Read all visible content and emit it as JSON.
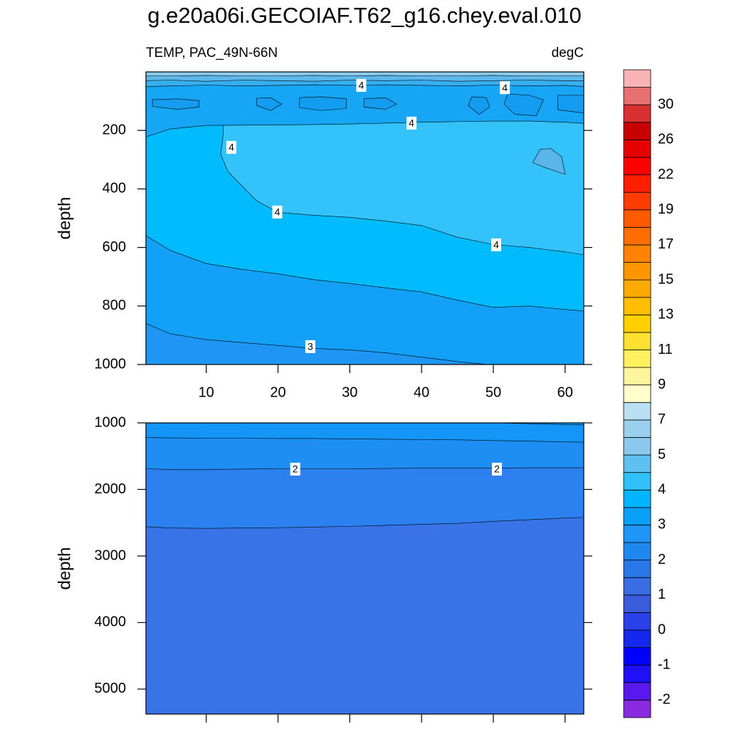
{
  "chart_data": [
    {
      "type": "contour",
      "title": "g.e20a06i.GECOIAF.T62_g16.chey.eval.010",
      "subtitle_left": "TEMP, PAC_49N-66N",
      "subtitle_right": "degC",
      "ylabel": "depth",
      "xlim": [
        1.6,
        62.6
      ],
      "ylim": [
        0,
        1000
      ],
      "xticks": [
        10,
        20,
        30,
        40,
        50,
        60
      ],
      "yticks": [
        200,
        400,
        600,
        800,
        1000
      ],
      "show_xtick_labels": true,
      "regions": [
        {
          "color": "#1e96f4",
          "x": [
            1.6,
            62.6,
            62.6,
            1.6
          ],
          "depth": [
            0,
            0,
            1000,
            1000
          ]
        },
        {
          "color": "#13a1f8",
          "x": [
            1.6,
            1.6,
            5,
            10,
            15,
            20,
            25,
            30,
            35,
            40,
            45,
            50,
            55,
            60,
            62.6,
            62.6
          ],
          "depth": [
            0,
            860,
            895,
            915,
            925,
            935,
            945,
            950,
            960,
            975,
            990,
            1002,
            1010,
            1010,
            1010,
            0
          ]
        },
        {
          "color": "#00bcff",
          "x": [
            1.6,
            1.6,
            5,
            10,
            15,
            20,
            25,
            30,
            35,
            40,
            45,
            50,
            55,
            60,
            62.6,
            62.6
          ],
          "depth": [
            0,
            560,
            610,
            655,
            675,
            690,
            710,
            723,
            738,
            752,
            780,
            805,
            800,
            812,
            817,
            0
          ]
        },
        {
          "color": "#33c2fa",
          "x": [
            12.5,
            62.6,
            62.6,
            60,
            55,
            50,
            45,
            40,
            35,
            30,
            25,
            20,
            17,
            15,
            13,
            12,
            12.3
          ],
          "depth": [
            150,
            150,
            625,
            615,
            600,
            590,
            565,
            525,
            510,
            497,
            490,
            480,
            440,
            390,
            340,
            280,
            230
          ]
        },
        {
          "color": "#5ab6ea",
          "x": [
            56.5,
            58,
            59.5,
            60,
            57,
            55.5
          ],
          "depth": [
            265,
            262,
            290,
            350,
            325,
            310
          ]
        },
        {
          "color": "#17a6f5",
          "x": [
            1.6,
            1.6,
            5,
            10,
            15,
            20,
            25,
            30,
            35,
            40,
            45,
            50,
            55,
            60,
            62.6,
            62.6
          ],
          "depth": [
            0,
            222,
            195,
            183,
            182,
            181,
            180,
            178,
            175,
            172,
            170,
            168,
            168,
            172,
            176,
            0
          ]
        },
        {
          "color": "#139cf0",
          "x": [
            2.5,
            6,
            9,
            9,
            6,
            2.5
          ],
          "depth": [
            95,
            92,
            98,
            120,
            128,
            118
          ]
        },
        {
          "color": "#139cf0",
          "x": [
            17,
            19,
            20.5,
            19,
            17
          ],
          "depth": [
            90,
            88,
            110,
            132,
            115
          ]
        },
        {
          "color": "#139cf0",
          "x": [
            23,
            26,
            29.5,
            29.5,
            26,
            23
          ],
          "depth": [
            88,
            85,
            92,
            125,
            132,
            122
          ]
        },
        {
          "color": "#139cf0",
          "x": [
            32,
            35,
            36.5,
            35,
            32
          ],
          "depth": [
            92,
            88,
            110,
            128,
            120
          ]
        },
        {
          "color": "#139cf0",
          "x": [
            47,
            49,
            49.5,
            48,
            46.5
          ],
          "depth": [
            85,
            88,
            120,
            145,
            115
          ]
        },
        {
          "color": "#139cf0",
          "x": [
            52,
            55,
            57,
            56,
            53,
            51.5
          ],
          "depth": [
            75,
            80,
            95,
            150,
            145,
            110
          ]
        },
        {
          "color": "#139cf0",
          "x": [
            59,
            62.6,
            62.6,
            59
          ],
          "depth": [
            80,
            80,
            140,
            130
          ]
        },
        {
          "color": "#36aef0",
          "x": [
            1.6,
            1.6,
            5,
            10,
            15,
            20,
            25,
            30,
            35,
            40,
            45,
            50,
            55,
            60,
            62.6,
            62.6
          ],
          "depth": [
            0,
            50,
            48,
            45,
            48,
            46,
            44,
            46,
            44,
            46,
            48,
            45,
            48,
            46,
            50,
            0
          ]
        },
        {
          "color": "#5cb8ea",
          "x": [
            1.6,
            1.6,
            5,
            10,
            15,
            20,
            25,
            30,
            35,
            40,
            45,
            50,
            55,
            60,
            62.6,
            62.6
          ],
          "depth": [
            0,
            30,
            28,
            32,
            28,
            30,
            32,
            28,
            30,
            28,
            32,
            30,
            28,
            30,
            30,
            0
          ]
        },
        {
          "color": "#8ccbee",
          "x": [
            1.6,
            1.6,
            5,
            10,
            15,
            20,
            25,
            30,
            35,
            40,
            45,
            50,
            55,
            60,
            62.6,
            62.6
          ],
          "depth": [
            0,
            14,
            14,
            12,
            14,
            14,
            12,
            14,
            12,
            14,
            14,
            12,
            14,
            14,
            14,
            0
          ]
        }
      ],
      "contour_labels": [
        {
          "level": 4,
          "x": 31.6,
          "depth": 46
        },
        {
          "level": 4,
          "x": 51.6,
          "depth": 54
        },
        {
          "level": 4,
          "x": 38.6,
          "depth": 175
        },
        {
          "level": 4,
          "x": 13.5,
          "depth": 258
        },
        {
          "level": 4,
          "x": 19.9,
          "depth": 479
        },
        {
          "level": 4,
          "x": 50.4,
          "depth": 591
        },
        {
          "level": 3,
          "x": 24.5,
          "depth": 939
        }
      ]
    },
    {
      "type": "contour",
      "ylabel": "depth",
      "xlim": [
        1.6,
        62.6
      ],
      "ylim": [
        1000,
        5375
      ],
      "xticks": [
        10,
        20,
        30,
        40,
        50,
        60
      ],
      "yticks": [
        1000,
        2000,
        3000,
        4000,
        5000
      ],
      "show_xtick_labels": false,
      "regions": [
        {
          "color": "#3874e8",
          "x": [
            1.6,
            62.6,
            62.6,
            1.6
          ],
          "depth": [
            1000,
            1000,
            5375,
            5375
          ]
        },
        {
          "color": "#2c80ef",
          "x": [
            1.6,
            1.6,
            5,
            10,
            15,
            20,
            25,
            30,
            35,
            40,
            45,
            50,
            55,
            60,
            62.6,
            62.6
          ],
          "depth": [
            1000,
            2560,
            2580,
            2585,
            2580,
            2575,
            2565,
            2555,
            2540,
            2525,
            2510,
            2480,
            2455,
            2430,
            2420,
            1000
          ]
        },
        {
          "color": "#1e8ef5",
          "x": [
            1.6,
            1.6,
            5,
            10,
            15,
            20,
            25,
            30,
            35,
            40,
            45,
            50,
            55,
            60,
            62.6,
            62.6
          ],
          "depth": [
            1000,
            1690,
            1700,
            1700,
            1695,
            1690,
            1690,
            1690,
            1685,
            1680,
            1680,
            1680,
            1675,
            1675,
            1675,
            1000
          ]
        },
        {
          "color": "#1496f8",
          "x": [
            1.6,
            1.6,
            5,
            10,
            15,
            20,
            25,
            30,
            35,
            40,
            45,
            50,
            55,
            60,
            62.6,
            62.6
          ],
          "depth": [
            1000,
            1220,
            1225,
            1230,
            1230,
            1235,
            1235,
            1240,
            1245,
            1250,
            1255,
            1265,
            1275,
            1285,
            1290,
            1000
          ]
        },
        {
          "color": "#0aa0fa",
          "x": [
            50,
            62.6,
            62.6
          ],
          "depth": [
            1000,
            1000,
            1030
          ]
        }
      ],
      "contour_labels": [
        {
          "level": 2,
          "x": 22.4,
          "depth": 1695
        },
        {
          "level": 2,
          "x": 50.5,
          "depth": 1695
        }
      ]
    },
    {
      "type": "colorbar",
      "colors": [
        "#8a2be2",
        "#5a18f0",
        "#2010f5",
        "#0000ff",
        "#1428ee",
        "#2a40e8",
        "#3a5cdc",
        "#3a6ce2",
        "#2a78e8",
        "#1e88f0",
        "#1e96f8",
        "#0aa0fa",
        "#00b4ff",
        "#30c0fa",
        "#5ec0f0",
        "#8cc8ee",
        "#98d0ee",
        "#b8dff2",
        "#ffffcc",
        "#fff59c",
        "#fff060",
        "#ffe030",
        "#ffd000",
        "#ffbe00",
        "#ffaa00",
        "#ff9600",
        "#ff8200",
        "#ff6e00",
        "#ff5a00",
        "#ff3c00",
        "#ff1e00",
        "#ff0000",
        "#e60000",
        "#c80000",
        "#d83030",
        "#e87070",
        "#f8b4b4"
      ],
      "labels": [
        -2,
        -1,
        0,
        1,
        2,
        3,
        4,
        5,
        7,
        9,
        11,
        13,
        15,
        17,
        19,
        22,
        26,
        30
      ]
    }
  ]
}
